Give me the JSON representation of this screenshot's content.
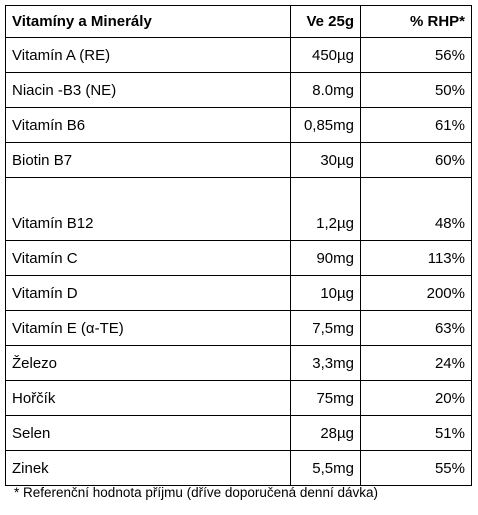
{
  "table": {
    "header": [
      "Vitamíny a Minerály",
      "Ve 25g",
      "% RHP*"
    ],
    "rows": [
      [
        "Vitamín A (RE)",
        "450µg",
        "56%"
      ],
      [
        "Niacin -B3 (NE)",
        "8.0mg",
        "50%"
      ],
      [
        "Vitamín B6",
        "0,85mg",
        "61%"
      ],
      [
        "Biotin B7",
        "30µg",
        "60%"
      ],
      [
        "Vitamín B12",
        "1,2µg",
        "48%"
      ],
      [
        "Vitamín C",
        "90mg",
        "113%"
      ],
      [
        "Vitamín D",
        "10µg",
        "200%"
      ],
      [
        "Vitamín E (α-TE)",
        "7,5mg",
        "63%"
      ],
      [
        "Železo",
        "3,3mg",
        "24%"
      ],
      [
        "Hořčík",
        "75mg",
        "20%"
      ],
      [
        "Selen",
        "28µg",
        "51%"
      ],
      [
        "Zinek",
        "5,5mg",
        "55%"
      ]
    ]
  },
  "footnote": "* Referenční hodnota příjmu (dříve doporučená denní dávka)"
}
